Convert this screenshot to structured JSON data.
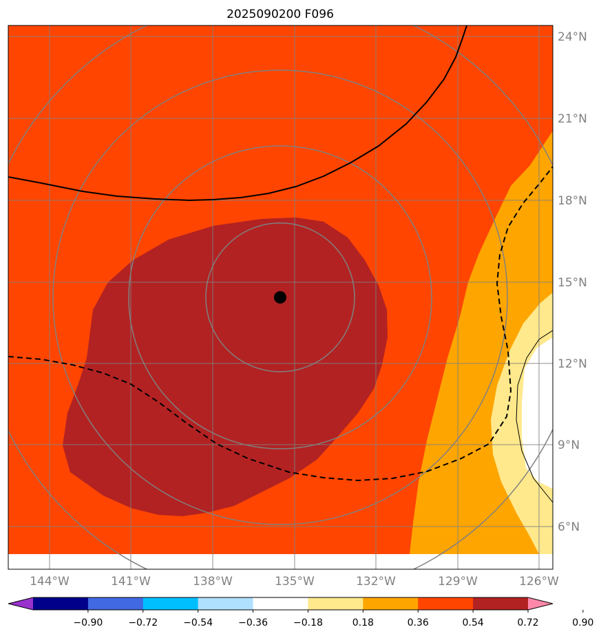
{
  "title": "2025090200 F096",
  "map": {
    "lat_labels": [
      "24°N",
      "21°N",
      "18°N",
      "15°N",
      "12°N",
      "9°N",
      "6°N"
    ],
    "lon_labels": [
      "144°W",
      "141°W",
      "138°W",
      "135°W",
      "132°W",
      "129°W",
      "126°W"
    ],
    "center_marker": {
      "lat": 14.5,
      "lon": -135.5
    },
    "fill_colors": {
      "outer": "#ff4500",
      "core": "#b22222",
      "band_036_054": "#ffa500",
      "band_018_036": "#ffe98c",
      "band_low": "#ffffff"
    },
    "gridline_color": "#808080"
  },
  "colorbar": {
    "colors": [
      "#9932cc",
      "#00008b",
      "#4169e1",
      "#00bfff",
      "#b0e0ff",
      "#ffffff",
      "#ffe98c",
      "#ffa500",
      "#ff4500",
      "#b22222",
      "#ff88aa"
    ],
    "ticks": [
      "−0.90",
      "−0.72",
      "−0.54",
      "−0.36",
      "−0.18",
      "0.18",
      "0.36",
      "0.54",
      "0.72",
      "0.90"
    ]
  }
}
